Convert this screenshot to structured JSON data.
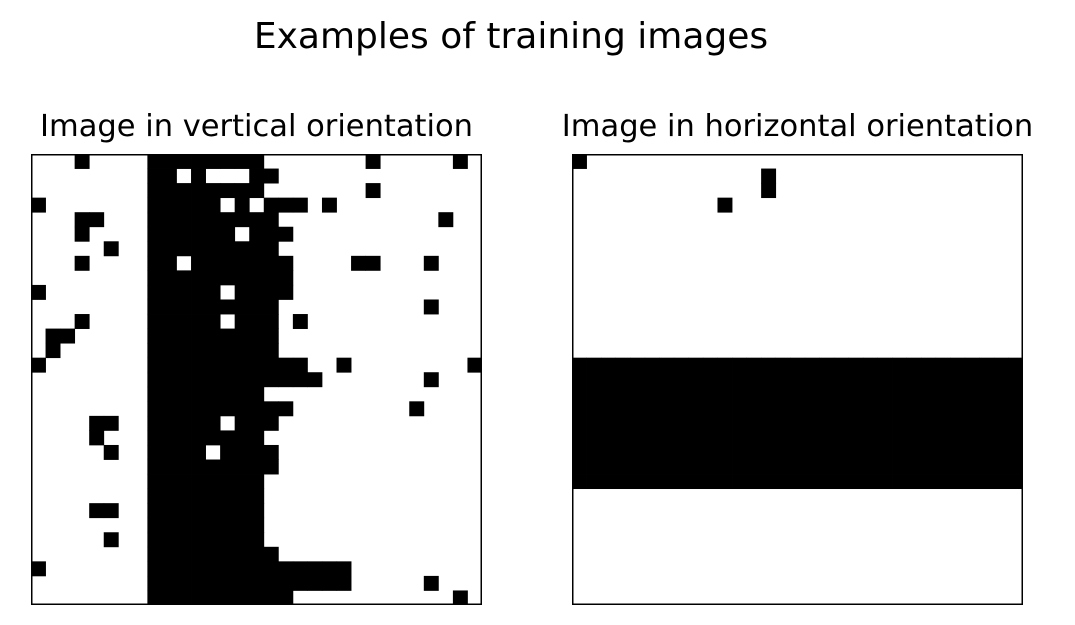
{
  "figure": {
    "title": "Examples of training images"
  },
  "panels": [
    {
      "title": "Image in vertical orientation",
      "colors": {
        "on": "#000000",
        "off": "#ffffff",
        "frame": "#000000"
      },
      "rows": [
        "0001000011111111000000010000010",
        "0000000011010001100000000000000",
        "0000000011111111000000010000000",
        "1000000011111010111010000000000",
        "0001100011111111100000000000100",
        "0001000011111101110000000000000",
        "0000010011111111100000000000000",
        "0001000011011111110000110001000",
        "0000000011111111110000000000000",
        "1000000011111011110000000000000",
        "0000000011111111100000000001000",
        "0001000011111011101000000000000",
        "0110000011111111100000000000000",
        "0100000011111111100000000000000",
        "1000000011111111111001000000001",
        "0000000011111111111100000001000",
        "0000000011111111000000000000000",
        "0000000011111111110000000010000",
        "0000110011111011100000000000000",
        "0000100011111111000000000000000",
        "0000010011110111100000000000000",
        "0000000011111111100000000000000",
        "0000000011111111000000000000000",
        "0000000011111111000000000000000",
        "0000110011111111000000000000000",
        "0000000011111111000000000000000",
        "0000010011111111000000000000000",
        "0000000011111111100000000000000",
        "1000000011111111111111000000000",
        "0000000011111111111111000001000",
        "0000000011111111110000000000010"
      ]
    },
    {
      "title": "Image in horizontal orientation",
      "colors": {
        "on": "#000000",
        "off": "#ffffff",
        "frame": "#000000"
      },
      "rows": [
        "1000000000000000000000000000000",
        "0000000000000100000000000000000",
        "0000000000000100000000000000000",
        "0000000000100000000000000000000",
        "0000000000000000000000000000000",
        "0000000000000000000000000000000",
        "0000000000000000000000000000000",
        "0000000000000000000000000000000",
        "0000000000000000000000000000000",
        "0000000000000000000000000000000",
        "0000000000000000000000000000000",
        "0000000000000000000000000000000",
        "0000000000000000000000000000000",
        "0000000000000000000000000000000",
        "1111111111111111111111111111111",
        "1111111111111111111111111111111",
        "1111111111111111111111111111111",
        "1111111111111111111111111111111",
        "1111111111111111111111111111111",
        "1111111111111111111111111111111",
        "1111111111111111111111111111111",
        "1111111111111111111111111111111",
        "1111111111111111111111111111111",
        "0000000000000000000000000000000",
        "0000000000000000000000000000000",
        "0000000000000000000000000000000",
        "0000000000000000000000000000000",
        "0000000000000000000000000000000",
        "0000000000000000000000000000000",
        "0000000000000000000000000000000",
        "0000000000000000000000000000000"
      ]
    }
  ]
}
